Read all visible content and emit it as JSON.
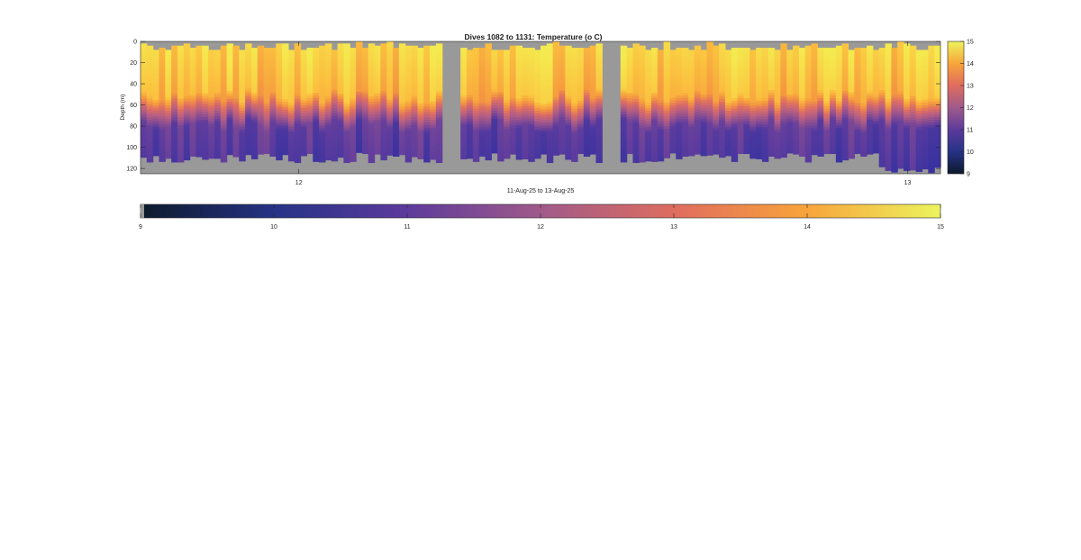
{
  "chart_data": {
    "type": "heatmap",
    "title": "Dives 1082 to 1131: Temperature",
    "title_unit": "(o C)",
    "ylabel": "Depth (m)",
    "xlabel": "11-Aug-25 to 13-Aug-25",
    "ylim": [
      0,
      125
    ],
    "y_reversed": true,
    "xlim_days": [
      11.74,
      13.054
    ],
    "x_ticks": [
      {
        "value": 12,
        "label": "12"
      },
      {
        "value": 13,
        "label": "13"
      }
    ],
    "y_ticks": [
      0,
      20,
      40,
      60,
      80,
      100,
      120
    ],
    "clim": [
      9,
      15
    ],
    "colorbar_ticks": [
      9,
      10,
      11,
      12,
      13,
      14,
      15
    ],
    "colormap": [
      "#0d1a2b",
      "#1c2b5e",
      "#3431a0",
      "#5e3c9e",
      "#8b4e91",
      "#b75f82",
      "#de6e62",
      "#f59a3f",
      "#fbc13f",
      "#f5e84e",
      "#e9f560"
    ],
    "missing_color": "#999999",
    "profile_count": 50,
    "x_breakpoints": [
      12.0,
      12.017,
      12.087,
      12.145,
      12.258,
      12.358,
      12.402,
      12.458,
      12.483,
      12.506,
      12.527,
      12.549,
      12.585,
      12.617,
      12.638,
      12.665,
      12.694,
      12.74,
      12.758,
      12.799,
      12.838,
      12.87,
      12.913,
      12.935,
      12.974,
      13.005
    ],
    "gaps_days": [
      [
        12.24,
        12.265
      ],
      [
        12.5,
        12.527
      ]
    ],
    "warm_layer_temp_range": [
      13.6,
      14.6
    ],
    "cold_layer_temp_range": [
      10.5,
      11.2
    ],
    "surface_depth_range_m": [
      0,
      8
    ],
    "thermocline_depth_range_m": [
      50,
      80
    ],
    "bottom_depth_range_m": [
      105,
      125
    ],
    "tick_labels_color": "#262626"
  }
}
